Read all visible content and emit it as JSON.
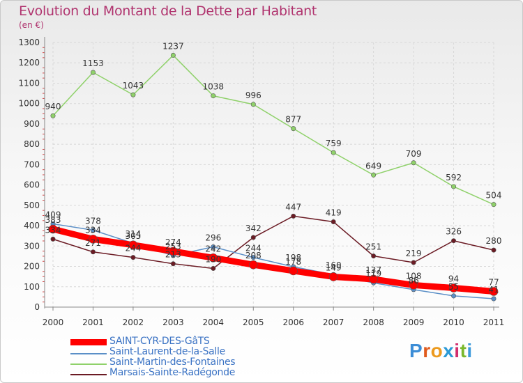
{
  "title": "Evolution du Montant de la Dette par Habitant",
  "subtitle": "(en €)",
  "brand": {
    "letters": [
      "P",
      "r",
      "o",
      "x",
      "i",
      "t",
      "i"
    ],
    "colors": [
      "#3c8dd6",
      "#e05a1c",
      "#ec9a1e",
      "#2c9ad6",
      "#d22f6e",
      "#7ab82d",
      "#3d9adb"
    ]
  },
  "chart_data": {
    "type": "line",
    "title": "Evolution du Montant de la Dette par Habitant",
    "subtitle": "(en €)",
    "xlabel": "",
    "ylabel": "",
    "ylim": [
      0,
      1300
    ],
    "y_ticks": [
      0,
      100,
      200,
      300,
      400,
      500,
      600,
      700,
      800,
      900,
      1000,
      1100,
      1200,
      1300
    ],
    "categories": [
      "2000",
      "2001",
      "2002",
      "2003",
      "2004",
      "2005",
      "2006",
      "2007",
      "2008",
      "2009",
      "2010",
      "2011"
    ],
    "grid": true,
    "legend_position": "bottom-left",
    "series": [
      {
        "name": "SAINT-CYR-DES-GâTS",
        "color": "#ff0000",
        "values": [
          383,
          334,
          305,
          274,
          242,
          208,
          178,
          149,
          137,
          108,
          94,
          77
        ]
      },
      {
        "name": "Saint-Laurent-de-la-Salle",
        "color": "#5b8fc7",
        "values": [
          409,
          378,
          314,
          253,
          296,
          244,
          198,
          160,
          119,
          86,
          55,
          41
        ]
      },
      {
        "name": "Saint-Martin-des-Fontaines",
        "color": "#8fd16a",
        "values": [
          940,
          1153,
          1043,
          1237,
          1038,
          996,
          877,
          759,
          649,
          709,
          592,
          504
        ]
      },
      {
        "name": "Marsais-Sainte-Radégonde",
        "color": "#6b1b24",
        "values": [
          334,
          271,
          244,
          213,
          190,
          342,
          447,
          419,
          251,
          219,
          326,
          280
        ]
      }
    ],
    "data_labels": [
      {
        "series": 0,
        "values": [
          "383",
          "334",
          "305",
          "274",
          "242",
          "208",
          "178",
          "149",
          "137",
          "108",
          "94",
          "77"
        ]
      },
      {
        "series": 1,
        "values": [
          "409",
          "378",
          "314",
          "253",
          "296",
          "244",
          "198",
          "160",
          "119",
          "86",
          "55",
          "41"
        ]
      },
      {
        "series": 2,
        "values": [
          "940",
          "1153",
          "1043",
          "1237",
          "1038",
          "996",
          "877",
          "759",
          "649",
          "709",
          "592",
          "504"
        ]
      },
      {
        "series": 3,
        "values": [
          "334",
          "271",
          "244",
          "213",
          "190",
          "342",
          "447",
          "419",
          "251",
          "219",
          "326",
          "280"
        ]
      }
    ]
  }
}
